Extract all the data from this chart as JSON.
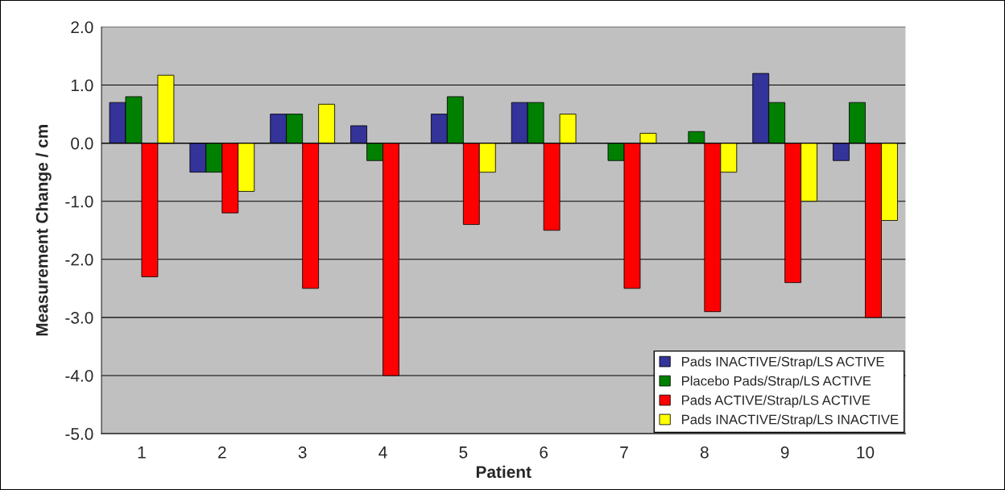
{
  "chart_data": {
    "type": "bar",
    "xlabel": "Patient",
    "ylabel": "Measurement Change / cm",
    "categories": [
      "1",
      "2",
      "3",
      "4",
      "5",
      "6",
      "7",
      "8",
      "9",
      "10"
    ],
    "series": [
      {
        "name": "Pads INACTIVE/Strap/LS ACTIVE",
        "color": "#333399",
        "values": [
          0.7,
          -0.5,
          0.5,
          0.3,
          0.5,
          0.7,
          null,
          null,
          1.2,
          -0.3
        ]
      },
      {
        "name": "Placebo Pads/Strap/LS ACTIVE",
        "color": "#008000",
        "values": [
          0.8,
          -0.5,
          0.5,
          -0.3,
          0.8,
          0.7,
          -0.3,
          0.2,
          0.7,
          0.7
        ]
      },
      {
        "name": "Pads ACTIVE/Strap/LS ACTIVE",
        "color": "#ff0000",
        "values": [
          -2.3,
          -1.2,
          -2.5,
          -4.0,
          -1.4,
          -1.5,
          -2.5,
          -2.9,
          -2.4,
          -3.0
        ]
      },
      {
        "name": "Pads INACTIVE/Strap/LS INACTIVE",
        "color": "#ffff00",
        "values": [
          1.17,
          -0.83,
          0.67,
          null,
          -0.5,
          0.5,
          0.17,
          -0.5,
          -1.0,
          -1.33
        ]
      }
    ],
    "ylim": [
      -5.0,
      2.0
    ],
    "yticks": [
      {
        "value": -5.0,
        "label": "-5.0"
      },
      {
        "value": -4.0,
        "label": "-4.0"
      },
      {
        "value": -3.0,
        "label": "-3.0"
      },
      {
        "value": -2.0,
        "label": "-2.0"
      },
      {
        "value": -1.0,
        "label": "-1.0"
      },
      {
        "value": 0.0,
        "label": "0.0"
      },
      {
        "value": 1.0,
        "label": "1.0"
      },
      {
        "value": 2.0,
        "label": "2.0"
      }
    ],
    "grid": "y",
    "legend": "bottom right"
  }
}
